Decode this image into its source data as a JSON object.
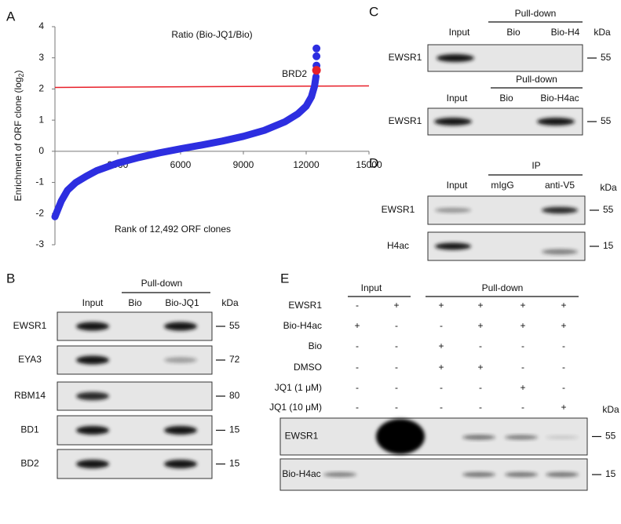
{
  "chart_data": {
    "type": "line",
    "panel_label": "A",
    "title": "Ratio (Bio-JQ1/Bio)",
    "ylabel": [
      "Enrichment of ORF clone (log",
      "2",
      ")"
    ],
    "xlabel": "Rank of 12,492 ORF clones",
    "x": [
      1,
      150,
      300,
      600,
      1000,
      1500,
      2000,
      3000,
      4000,
      5000,
      6000,
      7000,
      8000,
      9000,
      10000,
      11000,
      11600,
      12000,
      12250,
      12400,
      12470
    ],
    "values": [
      -2.1,
      -1.85,
      -1.6,
      -1.25,
      -1.0,
      -0.8,
      -0.62,
      -0.38,
      -0.2,
      -0.05,
      0.08,
      0.2,
      0.33,
      0.48,
      0.67,
      0.95,
      1.2,
      1.45,
      1.75,
      2.1,
      2.4
    ],
    "color": "#2d2ee0",
    "top_points": {
      "x": [
        12492,
        12492,
        12492
      ],
      "values": [
        3.3,
        3.05,
        2.75
      ]
    },
    "annotation": {
      "text": "BRD2",
      "x": 12492,
      "value": 2.6,
      "color": "#e8202a"
    },
    "threshold_line": {
      "x": [
        0,
        15000
      ],
      "values": [
        2.05,
        2.1
      ],
      "color": "#e8202a"
    },
    "xlim": [
      0,
      15000
    ],
    "xticks": [
      3000,
      6000,
      9000,
      12000,
      15000
    ],
    "ylim": [
      -3,
      4
    ],
    "yticks": [
      -3,
      -2,
      -1,
      0,
      1,
      2,
      3,
      4
    ]
  },
  "panel_b": {
    "label": "B",
    "header": "Pull-down",
    "columns": [
      "Input",
      "Bio",
      "Bio-JQ1"
    ],
    "kda_label": "kDa",
    "rows": [
      {
        "name": "EWSR1",
        "kda": 55
      },
      {
        "name": "EYA3",
        "kda": 72
      },
      {
        "name": "RBM14",
        "kda": 80
      },
      {
        "name": "BD1",
        "kda": 15
      },
      {
        "name": "BD2",
        "kda": 15
      }
    ]
  },
  "panel_c": {
    "label": "C",
    "kda_label": "kDa",
    "blots": [
      {
        "header": "Pull-down",
        "columns": [
          "Input",
          "Bio",
          "Bio-H4"
        ],
        "row": "EWSR1",
        "kda": 55
      },
      {
        "header": "Pull-down",
        "columns": [
          "Input",
          "Bio",
          "Bio-H4ac"
        ],
        "row": "EWSR1",
        "kda": 55
      }
    ]
  },
  "panel_d": {
    "label": "D",
    "header": "IP",
    "columns": [
      "Input",
      "mIgG",
      "anti-V5"
    ],
    "kda_label": "kDa",
    "rows": [
      {
        "name": "EWSR1",
        "kda": 55
      },
      {
        "name": "H4ac",
        "kda": 15
      }
    ]
  },
  "panel_e": {
    "label": "E",
    "groups": [
      "Input",
      "Pull-down"
    ],
    "kda_label": "kDa",
    "conditions": [
      {
        "name": "EWSR1",
        "signs": [
          "-",
          "+",
          "+",
          "+",
          "+",
          "+"
        ]
      },
      {
        "name": "Bio-H4ac",
        "signs": [
          "+",
          "-",
          "-",
          "+",
          "+",
          "+"
        ]
      },
      {
        "name": "Bio",
        "signs": [
          "-",
          "-",
          "+",
          "-",
          "-",
          "-"
        ]
      },
      {
        "name": "DMSO",
        "signs": [
          "-",
          "-",
          "+",
          "+",
          "-",
          "-"
        ]
      },
      {
        "name": "JQ1 (1 μM)",
        "signs": [
          "-",
          "-",
          "-",
          "-",
          "+",
          "-"
        ]
      },
      {
        "name": "JQ1 (10 μM)",
        "signs": [
          "-",
          "-",
          "-",
          "-",
          "-",
          "+"
        ]
      }
    ],
    "rows": [
      {
        "name": "EWSR1",
        "kda": 55
      },
      {
        "name": "Bio-H4ac",
        "kda": 15
      }
    ]
  }
}
